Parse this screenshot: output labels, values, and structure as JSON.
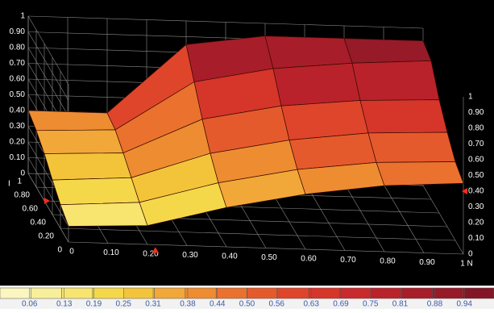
{
  "chart_data": {
    "type": "surface",
    "axis_label_y": "I",
    "x": [
      0,
      0.2,
      0.4,
      0.6,
      0.8,
      1
    ],
    "y": [
      0,
      0.2,
      0.4,
      0.6,
      0.8,
      1
    ],
    "z": [
      [
        0.1,
        0.12,
        0.25,
        0.35,
        0.42,
        0.45
      ],
      [
        0.15,
        0.18,
        0.32,
        0.42,
        0.48,
        0.5
      ],
      [
        0.22,
        0.25,
        0.42,
        0.52,
        0.58,
        0.6
      ],
      [
        0.3,
        0.32,
        0.55,
        0.65,
        0.7,
        0.72
      ],
      [
        0.36,
        0.38,
        0.7,
        0.8,
        0.85,
        0.88
      ],
      [
        0.4,
        0.4,
        0.85,
        0.92,
        0.92,
        0.92
      ]
    ],
    "xlim": [
      0,
      1
    ],
    "ylim": [
      0,
      1
    ],
    "zlim": [
      0,
      1
    ],
    "xticks": [
      0,
      {
        "value": 0.1,
        "label": "0.10"
      },
      {
        "value": 0.2,
        "label": "0.20"
      },
      {
        "value": 0.3,
        "label": "0.30"
      },
      {
        "value": 0.4,
        "label": "0.40"
      },
      {
        "value": 0.5,
        "label": "0.50"
      },
      {
        "value": 0.6,
        "label": "0.60"
      },
      {
        "value": 0.7,
        "label": "0.70"
      },
      {
        "value": 0.8,
        "label": "0.80"
      },
      {
        "value": 0.9,
        "label": "0.90"
      },
      {
        "value": 1,
        "label": "1 N"
      }
    ],
    "yticks": [
      0,
      {
        "value": 0.2,
        "label": "0.20"
      },
      {
        "value": 0.4,
        "label": "0.40"
      },
      {
        "value": 0.6,
        "label": "0.60"
      },
      {
        "value": 0.8,
        "label": "0.80"
      },
      1
    ],
    "zticks": [
      0,
      {
        "value": 0.1,
        "label": "0.10"
      },
      {
        "value": 0.2,
        "label": "0.20"
      },
      {
        "value": 0.3,
        "label": "0.30"
      },
      {
        "value": 0.4,
        "label": "0.40"
      },
      {
        "value": 0.5,
        "label": "0.50"
      },
      {
        "value": 0.6,
        "label": "0.60"
      },
      {
        "value": 0.7,
        "label": "0.70"
      },
      {
        "value": 0.8,
        "label": "0.80"
      },
      {
        "value": 0.9,
        "label": "0.90"
      },
      1
    ],
    "markers": {
      "x": 0.22,
      "y": 0.6,
      "z": 0.4
    },
    "marker_color": "#ff2a1a",
    "grid": true,
    "clim": [
      0,
      1
    ],
    "colorscale": [
      "#fbf6c0",
      "#f8ef9a",
      "#f7e56f",
      "#f5d84a",
      "#f3c43a",
      "#f1a838",
      "#ee8c32",
      "#ea722e",
      "#e55a2c",
      "#df452b",
      "#d6352a",
      "#c92a2b",
      "#b9222b",
      "#a81d2a",
      "#961a28",
      "#821626"
    ],
    "cticks": [
      0.06,
      0.13,
      0.19,
      0.25,
      0.31,
      0.38,
      0.44,
      {
        "value": 0.5,
        "label": "0.50"
      },
      0.56,
      0.63,
      0.69,
      0.75,
      0.81,
      0.88,
      0.94
    ]
  }
}
